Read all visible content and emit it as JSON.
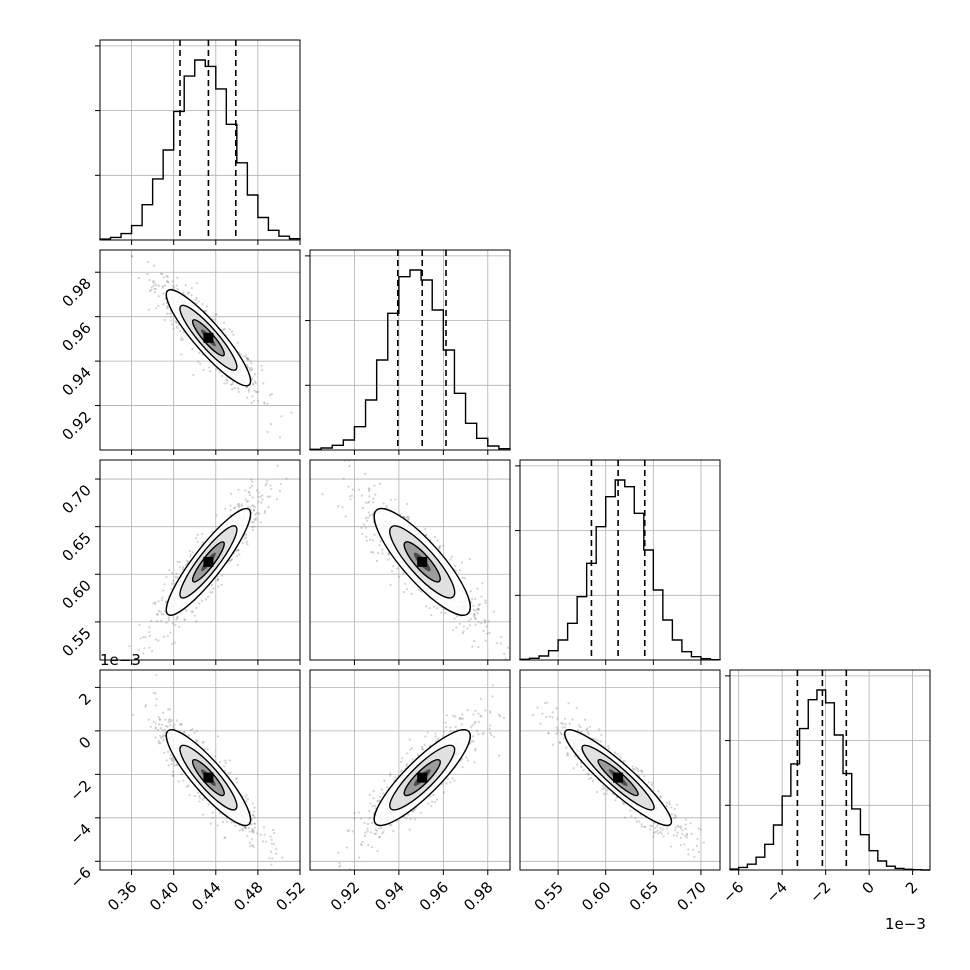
{
  "colors": {
    "hist": "#000000",
    "grid": "#b0b0b0",
    "scatter": "#7f7f7f",
    "background": "#ffffff"
  },
  "chart_data": {
    "type": "corner",
    "grid": true,
    "quantile_lines": "dashed",
    "parameters": [
      {
        "range": [
          0.33,
          0.52
        ],
        "ticks": [
          0.36,
          0.4,
          0.44,
          0.48,
          0.52
        ],
        "tick_labels": [
          "0.36",
          "0.40",
          "0.44",
          "0.48",
          "0.52"
        ],
        "offset_label": "",
        "quantiles": [
          0.406,
          0.433,
          0.459
        ],
        "mean": 0.433,
        "sd": 0.02
      },
      {
        "range": [
          0.9,
          0.99
        ],
        "ticks": [
          0.92,
          0.94,
          0.96,
          0.98
        ],
        "tick_labels": [
          "0.92",
          "0.94",
          "0.96",
          "0.98"
        ],
        "offset_label": "",
        "quantiles": [
          0.9395,
          0.9505,
          0.9612
        ],
        "mean": 0.9505,
        "sd": 0.0108
      },
      {
        "range": [
          0.51,
          0.72
        ],
        "ticks": [
          0.55,
          0.6,
          0.65,
          0.7
        ],
        "tick_labels": [
          "0.55",
          "0.60",
          "0.65",
          "0.70"
        ],
        "offset_label": "",
        "quantiles": [
          0.585,
          0.613,
          0.641
        ],
        "mean": 0.613,
        "sd": 0.028
      },
      {
        "range": [
          -6.4,
          2.8
        ],
        "ticks": [
          -6,
          -4,
          -2,
          0,
          2
        ],
        "tick_labels": [
          "−6",
          "−4",
          "−2",
          "0",
          "2"
        ],
        "offset_label": "1e−3",
        "quantiles": [
          -3.3,
          -2.15,
          -1.05
        ],
        "mean": -2.15,
        "sd": 1.1
      }
    ],
    "correlations": [
      [
        0,
        1,
        -0.9
      ],
      [
        0,
        2,
        0.9
      ],
      [
        1,
        2,
        -0.85
      ],
      [
        0,
        3,
        -0.88
      ],
      [
        1,
        3,
        0.87
      ],
      [
        2,
        3,
        -0.92
      ]
    ],
    "diagonal_histograms": [
      {
        "bin_edges": [
          0.33,
          0.34,
          0.35,
          0.36,
          0.37,
          0.38,
          0.39,
          0.4,
          0.41,
          0.42,
          0.43,
          0.44,
          0.45,
          0.46,
          0.47,
          0.48,
          0.49,
          0.5,
          0.51,
          0.52
        ],
        "counts": [
          3,
          8,
          20,
          45,
          110,
          190,
          280,
          400,
          510,
          560,
          540,
          470,
          360,
          240,
          140,
          70,
          30,
          12,
          4
        ]
      },
      {
        "bin_edges": [
          0.9,
          0.905,
          0.91,
          0.915,
          0.92,
          0.925,
          0.93,
          0.935,
          0.94,
          0.945,
          0.95,
          0.955,
          0.96,
          0.965,
          0.97,
          0.975,
          0.98,
          0.985,
          0.99
        ],
        "counts": [
          2,
          6,
          14,
          30,
          70,
          150,
          270,
          410,
          520,
          540,
          510,
          420,
          300,
          170,
          80,
          35,
          12,
          4
        ]
      },
      {
        "bin_edges": [
          0.51,
          0.52,
          0.53,
          0.54,
          0.55,
          0.56,
          0.57,
          0.58,
          0.59,
          0.6,
          0.61,
          0.62,
          0.63,
          0.64,
          0.65,
          0.66,
          0.67,
          0.68,
          0.69,
          0.7,
          0.71,
          0.72
        ],
        "counts": [
          2,
          5,
          12,
          28,
          60,
          110,
          190,
          290,
          400,
          490,
          540,
          520,
          440,
          330,
          210,
          120,
          60,
          25,
          10,
          4,
          1
        ]
      },
      {
        "bin_edges": [
          -6.4,
          -6.0,
          -5.6,
          -5.2,
          -4.8,
          -4.4,
          -4.0,
          -3.6,
          -3.2,
          -2.8,
          -2.4,
          -2.0,
          -1.6,
          -1.2,
          -0.8,
          -0.4,
          0.0,
          0.4,
          0.8,
          1.2,
          1.6,
          2.0,
          2.4,
          2.8
        ],
        "counts": [
          3,
          8,
          18,
          40,
          80,
          140,
          230,
          330,
          440,
          530,
          560,
          520,
          420,
          300,
          190,
          110,
          60,
          28,
          12,
          5,
          2,
          1,
          0
        ]
      }
    ]
  }
}
